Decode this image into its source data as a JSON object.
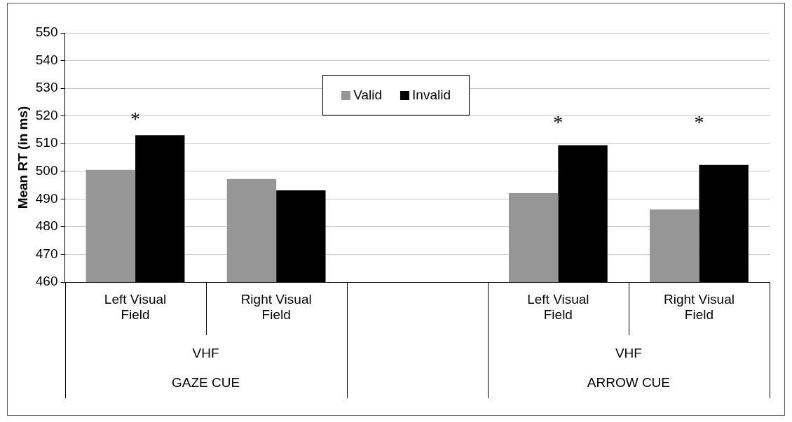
{
  "chart_data": {
    "type": "bar",
    "ylabel": "Mean RT (in ms)",
    "categories": [
      "Left Visual Field",
      "Right Visual Field",
      null,
      "Left Visual Field",
      "Right Visual Field"
    ],
    "series": [
      {
        "name": "Valid",
        "color": "#969696",
        "values": [
          500.5,
          497.2,
          null,
          492.1,
          486.2
        ]
      },
      {
        "name": "Invalid",
        "color": "#000000",
        "values": [
          513,
          493.1,
          null,
          509.4,
          502.3
        ],
        "value_labels": [
          "*",
          null,
          null,
          "*",
          "*"
        ]
      }
    ],
    "annotations": [
      "VHF",
      "GAZE CUE",
      "VHF",
      "ARROW CUE"
    ],
    "ylim": [
      460,
      550
    ],
    "yticks": [
      460,
      470,
      480,
      490,
      500,
      510,
      520,
      530,
      540,
      550
    ],
    "grid": "y",
    "legend": "top"
  }
}
